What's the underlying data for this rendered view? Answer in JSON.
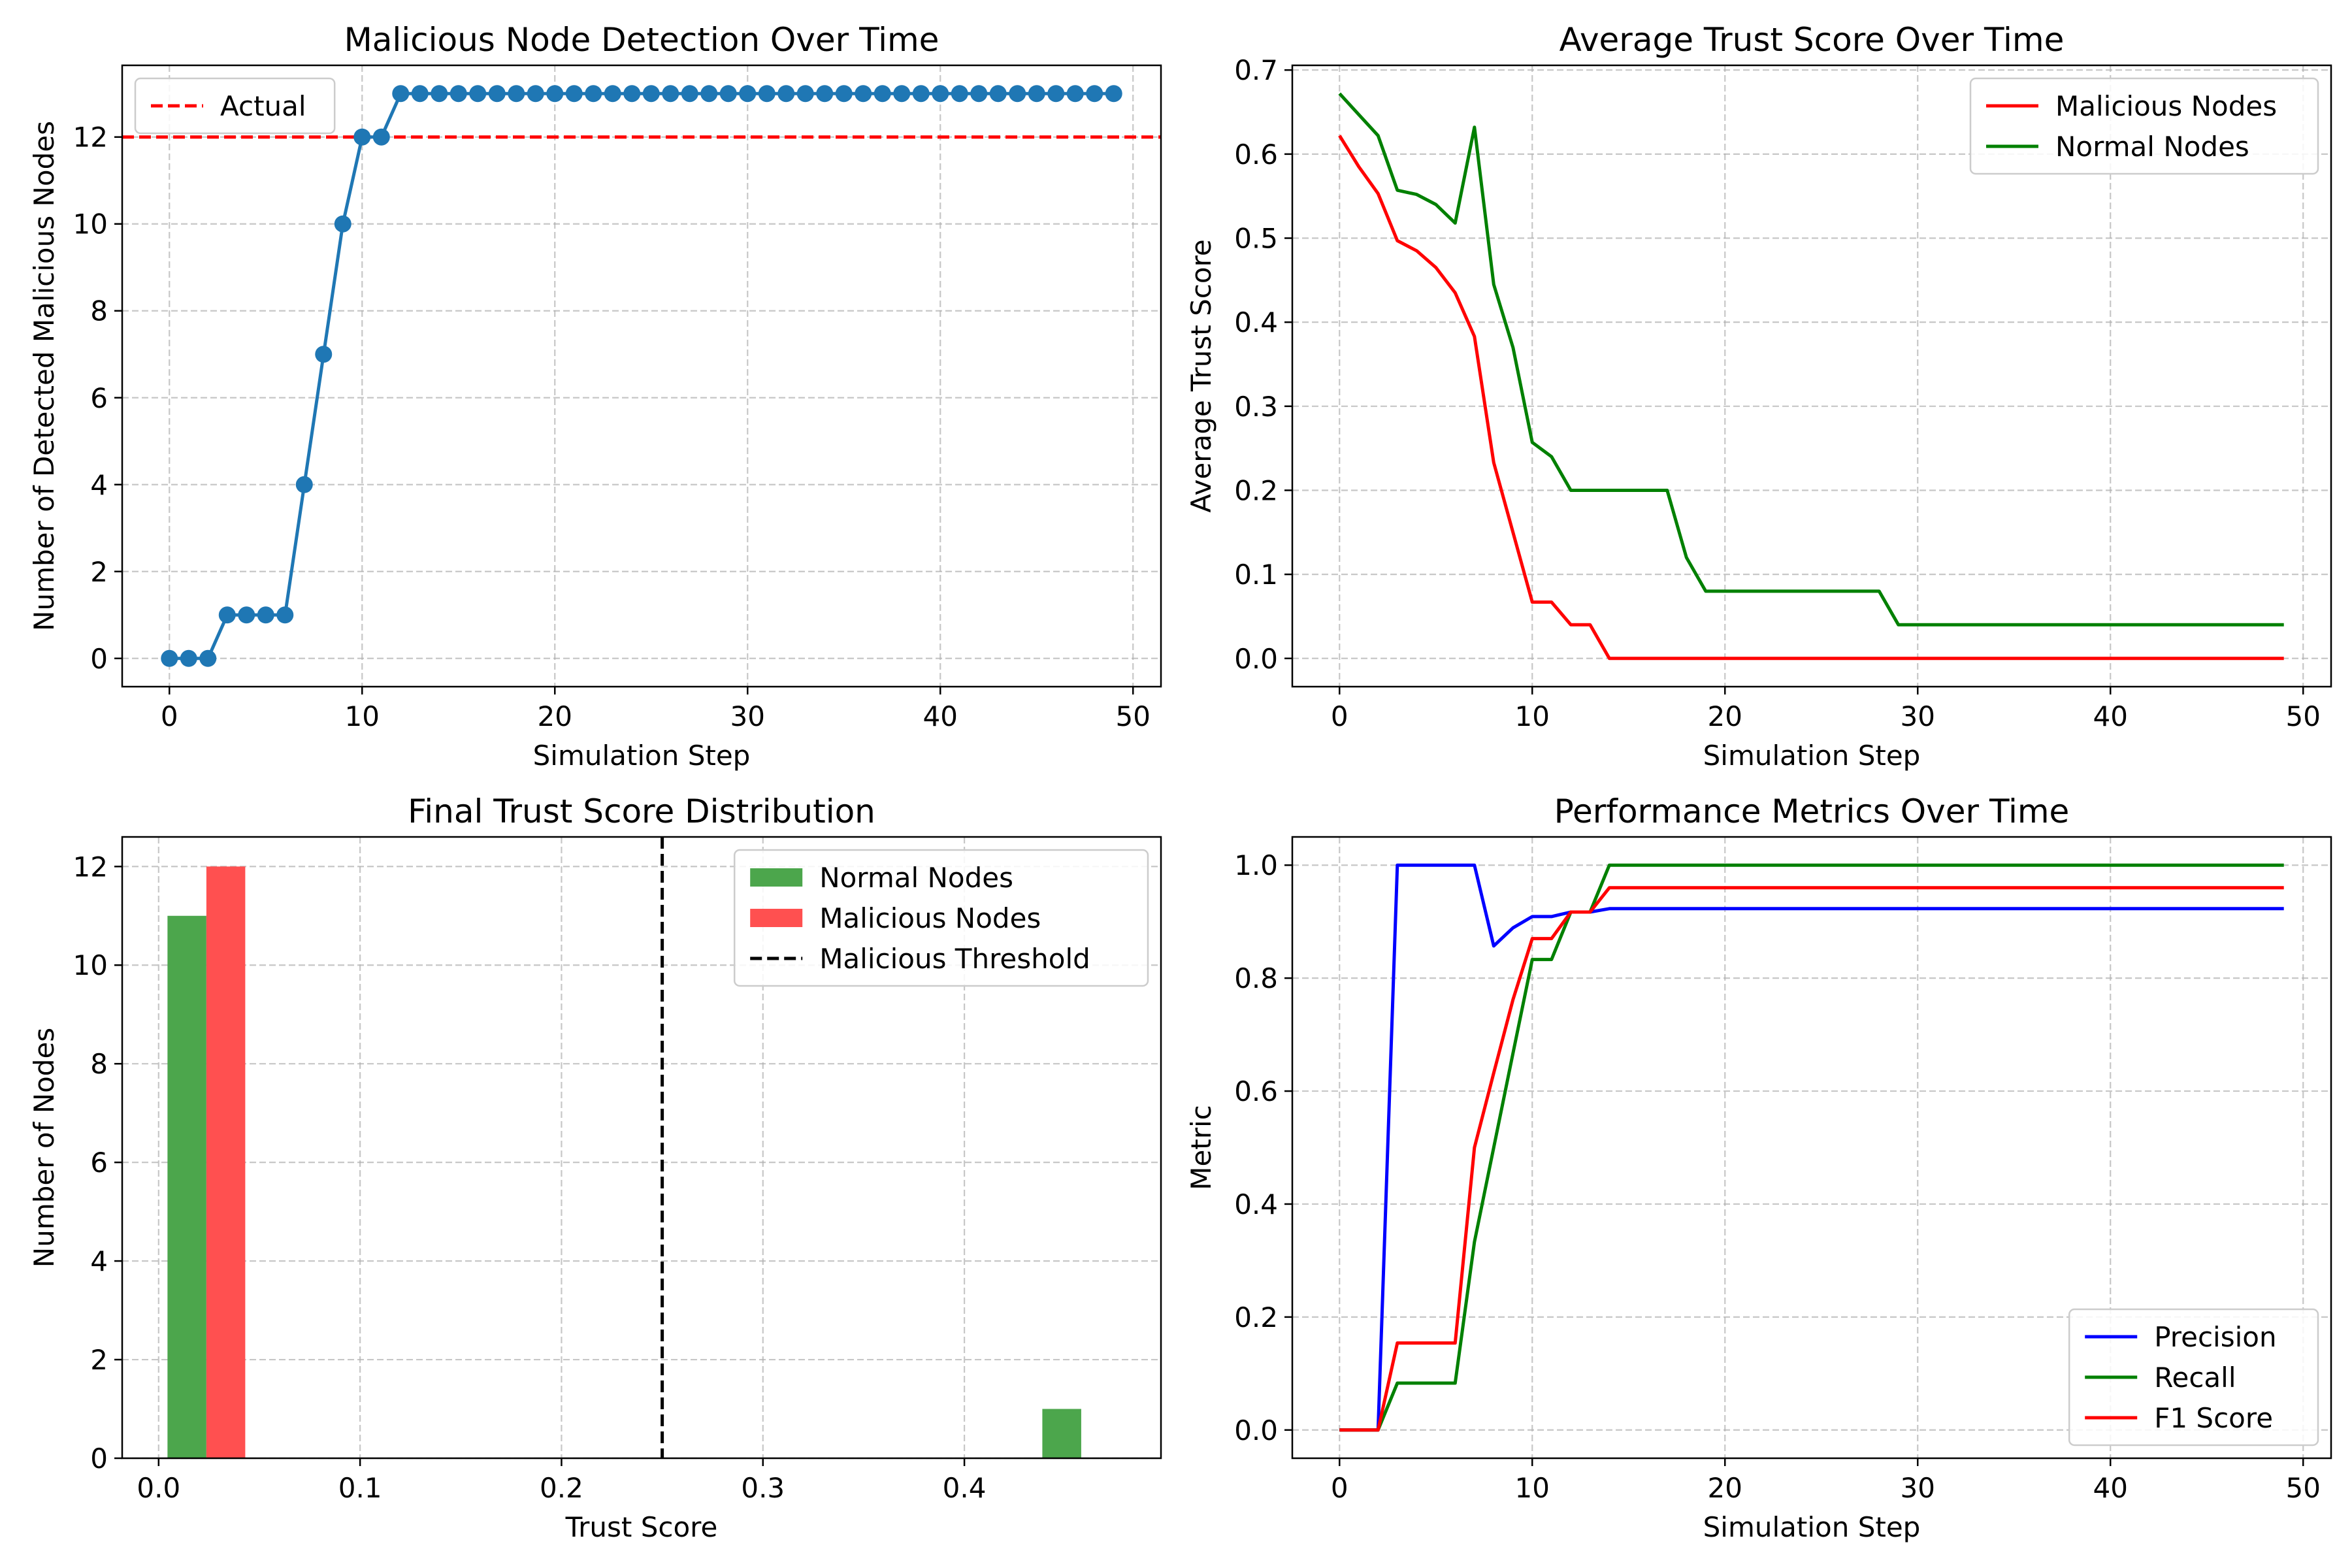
{
  "chart_data": [
    {
      "type": "line",
      "title": "Malicious Node Detection Over Time",
      "xlabel": "Simulation Step",
      "ylabel": "Number of Detected Malicious Nodes",
      "xlim": [
        -2.45,
        51.45
      ],
      "ylim": [
        -0.65,
        13.65
      ],
      "xticks": [
        0,
        10,
        20,
        30,
        40,
        50
      ],
      "yticks": [
        0,
        2,
        4,
        6,
        8,
        10,
        12
      ],
      "grid": true,
      "legend_position": "upper left",
      "series": [
        {
          "name": "",
          "color": "#1f77b4",
          "marker": "circle",
          "x": [
            0,
            1,
            2,
            3,
            4,
            5,
            6,
            7,
            8,
            9,
            10,
            11,
            12,
            13,
            14,
            15,
            16,
            17,
            18,
            19,
            20,
            21,
            22,
            23,
            24,
            25,
            26,
            27,
            28,
            29,
            30,
            31,
            32,
            33,
            34,
            35,
            36,
            37,
            38,
            39,
            40,
            41,
            42,
            43,
            44,
            45,
            46,
            47,
            48,
            49
          ],
          "values": [
            0,
            0,
            0,
            1,
            1,
            1,
            1,
            4,
            7,
            10,
            12,
            12,
            13,
            13,
            13,
            13,
            13,
            13,
            13,
            13,
            13,
            13,
            13,
            13,
            13,
            13,
            13,
            13,
            13,
            13,
            13,
            13,
            13,
            13,
            13,
            13,
            13,
            13,
            13,
            13,
            13,
            13,
            13,
            13,
            13,
            13,
            13,
            13,
            13,
            13
          ]
        }
      ],
      "hlines": [
        {
          "name": "Actual",
          "value": 12,
          "color": "#ff0000",
          "style": "dashed"
        }
      ]
    },
    {
      "type": "line",
      "title": "Average Trust Score Over Time",
      "xlabel": "Simulation Step",
      "ylabel": "Average Trust Score",
      "xlim": [
        -2.45,
        51.45
      ],
      "ylim": [
        -0.0336,
        0.7056
      ],
      "xticks": [
        0,
        10,
        20,
        30,
        40,
        50
      ],
      "yticks": [
        0.0,
        0.1,
        0.2,
        0.3,
        0.4,
        0.5,
        0.6,
        0.7
      ],
      "ytick_labels": [
        "0.0",
        "0.1",
        "0.2",
        "0.3",
        "0.4",
        "0.5",
        "0.6",
        "0.7"
      ],
      "grid": true,
      "legend_position": "upper right",
      "series": [
        {
          "name": "Malicious Nodes",
          "color": "#ff0000",
          "x": [
            0,
            1,
            2,
            3,
            4,
            5,
            6,
            7,
            8,
            9,
            10,
            11,
            12,
            13,
            14,
            15,
            16,
            17,
            18,
            19,
            20,
            21,
            22,
            23,
            24,
            25,
            26,
            27,
            28,
            29,
            30,
            31,
            32,
            33,
            34,
            35,
            36,
            37,
            38,
            39,
            40,
            41,
            42,
            43,
            44,
            45,
            46,
            47,
            48,
            49
          ],
          "values": [
            0.622,
            0.585,
            0.553,
            0.497,
            0.485,
            0.465,
            0.435,
            0.383,
            0.233,
            0.15,
            0.067,
            0.067,
            0.04,
            0.04,
            0.0,
            0,
            0,
            0,
            0,
            0,
            0,
            0,
            0,
            0,
            0,
            0,
            0,
            0,
            0,
            0,
            0,
            0,
            0,
            0,
            0,
            0,
            0,
            0,
            0,
            0,
            0,
            0,
            0,
            0,
            0,
            0,
            0,
            0,
            0,
            0
          ]
        },
        {
          "name": "Normal Nodes",
          "color": "#008000",
          "x": [
            0,
            1,
            2,
            3,
            4,
            5,
            6,
            7,
            8,
            9,
            10,
            11,
            12,
            13,
            14,
            15,
            16,
            17,
            18,
            19,
            20,
            21,
            22,
            23,
            24,
            25,
            26,
            27,
            28,
            29,
            30,
            31,
            32,
            33,
            34,
            35,
            36,
            37,
            38,
            39,
            40,
            41,
            42,
            43,
            44,
            45,
            46,
            47,
            48,
            49
          ],
          "values": [
            0.672,
            0.647,
            0.622,
            0.557,
            0.552,
            0.54,
            0.518,
            0.632,
            0.445,
            0.37,
            0.257,
            0.24,
            0.2,
            0.2,
            0.2,
            0.2,
            0.2,
            0.2,
            0.12,
            0.08,
            0.08,
            0.08,
            0.08,
            0.08,
            0.08,
            0.08,
            0.08,
            0.08,
            0.08,
            0.04,
            0.04,
            0.04,
            0.04,
            0.04,
            0.04,
            0.04,
            0.04,
            0.04,
            0.04,
            0.04,
            0.04,
            0.04,
            0.04,
            0.04,
            0.04,
            0.04,
            0.04,
            0.04,
            0.04,
            0.04
          ]
        }
      ]
    },
    {
      "type": "bar",
      "title": "Final Trust Score Distribution",
      "xlabel": "Trust Score",
      "ylabel": "Number of Nodes",
      "xlim": [
        -0.0181,
        0.4976
      ],
      "ylim": [
        0,
        12.6
      ],
      "xticks": [
        0.0,
        0.1,
        0.2,
        0.3,
        0.4
      ],
      "xtick_labels": [
        "0.0",
        "0.1",
        "0.2",
        "0.3",
        "0.4"
      ],
      "yticks": [
        0,
        2,
        4,
        6,
        8,
        10,
        12
      ],
      "grid": true,
      "legend_position": "upper right",
      "series": [
        {
          "name": "Normal Nodes",
          "color": "#4ca64c",
          "bars": [
            {
              "x0": 0.0044,
              "x1": 0.0237,
              "value": 11
            },
            {
              "x0": 0.4387,
              "x1": 0.458,
              "value": 1
            }
          ]
        },
        {
          "name": "Malicious Nodes",
          "color": "#ff5050",
          "bars": [
            {
              "x0": 0.0237,
              "x1": 0.043,
              "value": 12
            }
          ]
        }
      ],
      "vlines": [
        {
          "name": "Malicious Threshold",
          "value": 0.25,
          "color": "#000000",
          "style": "dashed"
        }
      ]
    },
    {
      "type": "line",
      "title": "Performance Metrics Over Time",
      "xlabel": "Simulation Step",
      "ylabel": "Metric",
      "xlim": [
        -2.45,
        51.45
      ],
      "ylim": [
        -0.05,
        1.05
      ],
      "xticks": [
        0,
        10,
        20,
        30,
        40,
        50
      ],
      "yticks": [
        0.0,
        0.2,
        0.4,
        0.6,
        0.8,
        1.0
      ],
      "ytick_labels": [
        "0.0",
        "0.2",
        "0.4",
        "0.6",
        "0.8",
        "1.0"
      ],
      "grid": true,
      "legend_position": "lower right",
      "series": [
        {
          "name": "Precision",
          "color": "#0000ff",
          "x": [
            0,
            1,
            2,
            3,
            4,
            5,
            6,
            7,
            8,
            9,
            10,
            11,
            12,
            13,
            14,
            15,
            16,
            17,
            18,
            19,
            20,
            21,
            22,
            23,
            24,
            25,
            26,
            27,
            28,
            29,
            30,
            31,
            32,
            33,
            34,
            35,
            36,
            37,
            38,
            39,
            40,
            41,
            42,
            43,
            44,
            45,
            46,
            47,
            48,
            49
          ],
          "values": [
            0,
            0,
            0,
            1.0,
            1.0,
            1.0,
            1.0,
            1.0,
            0.857,
            0.889,
            0.909,
            0.909,
            0.917,
            0.917,
            0.923,
            0.923,
            0.923,
            0.923,
            0.923,
            0.923,
            0.923,
            0.923,
            0.923,
            0.923,
            0.923,
            0.923,
            0.923,
            0.923,
            0.923,
            0.923,
            0.923,
            0.923,
            0.923,
            0.923,
            0.923,
            0.923,
            0.923,
            0.923,
            0.923,
            0.923,
            0.923,
            0.923,
            0.923,
            0.923,
            0.923,
            0.923,
            0.923,
            0.923,
            0.923,
            0.923
          ]
        },
        {
          "name": "Recall",
          "color": "#008000",
          "x": [
            0,
            1,
            2,
            3,
            4,
            5,
            6,
            7,
            8,
            9,
            10,
            11,
            12,
            13,
            14,
            15,
            16,
            17,
            18,
            19,
            20,
            21,
            22,
            23,
            24,
            25,
            26,
            27,
            28,
            29,
            30,
            31,
            32,
            33,
            34,
            35,
            36,
            37,
            38,
            39,
            40,
            41,
            42,
            43,
            44,
            45,
            46,
            47,
            48,
            49
          ],
          "values": [
            0,
            0,
            0,
            0.083,
            0.083,
            0.083,
            0.083,
            0.333,
            0.5,
            0.667,
            0.833,
            0.833,
            0.917,
            0.917,
            1.0,
            1.0,
            1.0,
            1.0,
            1.0,
            1.0,
            1.0,
            1.0,
            1.0,
            1.0,
            1.0,
            1.0,
            1.0,
            1.0,
            1.0,
            1.0,
            1.0,
            1.0,
            1.0,
            1.0,
            1.0,
            1.0,
            1.0,
            1.0,
            1.0,
            1.0,
            1.0,
            1.0,
            1.0,
            1.0,
            1.0,
            1.0,
            1.0,
            1.0,
            1.0,
            1.0
          ]
        },
        {
          "name": "F1 Score",
          "color": "#ff0000",
          "x": [
            0,
            1,
            2,
            3,
            4,
            5,
            6,
            7,
            8,
            9,
            10,
            11,
            12,
            13,
            14,
            15,
            16,
            17,
            18,
            19,
            20,
            21,
            22,
            23,
            24,
            25,
            26,
            27,
            28,
            29,
            30,
            31,
            32,
            33,
            34,
            35,
            36,
            37,
            38,
            39,
            40,
            41,
            42,
            43,
            44,
            45,
            46,
            47,
            48,
            49
          ],
          "values": [
            0,
            0,
            0,
            0.154,
            0.154,
            0.154,
            0.154,
            0.5,
            0.632,
            0.762,
            0.87,
            0.87,
            0.917,
            0.917,
            0.96,
            0.96,
            0.96,
            0.96,
            0.96,
            0.96,
            0.96,
            0.96,
            0.96,
            0.96,
            0.96,
            0.96,
            0.96,
            0.96,
            0.96,
            0.96,
            0.96,
            0.96,
            0.96,
            0.96,
            0.96,
            0.96,
            0.96,
            0.96,
            0.96,
            0.96,
            0.96,
            0.96,
            0.96,
            0.96,
            0.96,
            0.96,
            0.96,
            0.96,
            0.96,
            0.96
          ]
        }
      ]
    }
  ]
}
